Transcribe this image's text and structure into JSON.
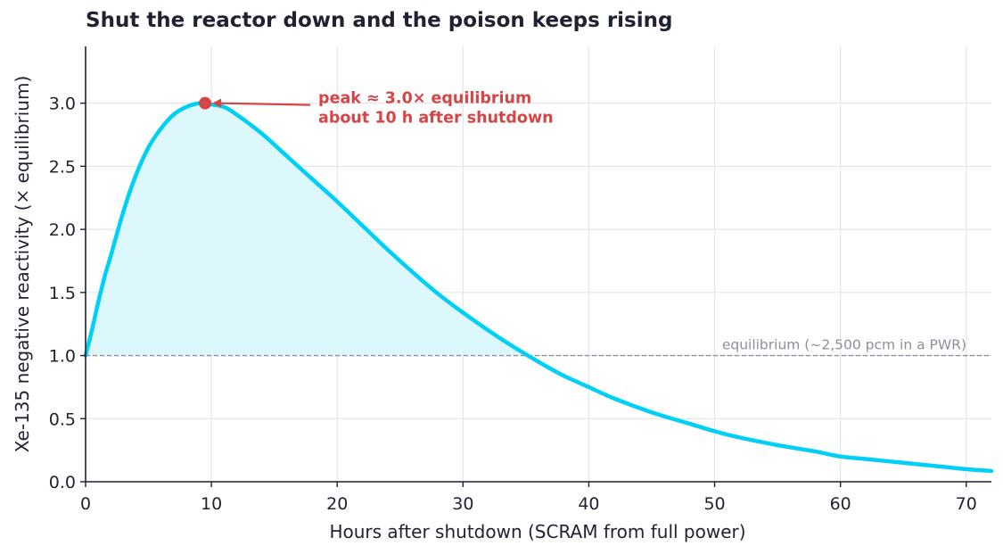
{
  "chart_data": {
    "type": "area",
    "title": "Shut the reactor down and the poison keeps rising",
    "xlabel": "Hours after shutdown (SCRAM from full power)",
    "ylabel": "Xe-135 negative reactivity (× equilibrium)",
    "xlim": [
      0,
      72
    ],
    "ylim": [
      0,
      3.45
    ],
    "xticks": [
      0,
      10,
      20,
      30,
      40,
      50,
      60,
      70
    ],
    "yticks": [
      0.0,
      0.5,
      1.0,
      1.5,
      2.0,
      2.5,
      3.0
    ],
    "ytick_labels": [
      "0.0",
      "0.5",
      "1.0",
      "1.5",
      "2.0",
      "2.5",
      "3.0"
    ],
    "grid": true,
    "series": [
      {
        "color": "#00d0f5",
        "fill_color": "#dcf8fd",
        "x": [
          0,
          0.5,
          1,
          1.5,
          2,
          3,
          4,
          5,
          6,
          7,
          8,
          9,
          9.5,
          10,
          11,
          12,
          14,
          16,
          18,
          20,
          22,
          24,
          26,
          28,
          30,
          32,
          34,
          36,
          38,
          40,
          42,
          45,
          48,
          50,
          52,
          55,
          58,
          60,
          62,
          65,
          68,
          70,
          72
        ],
        "y": [
          1.0,
          1.2,
          1.42,
          1.62,
          1.79,
          2.14,
          2.43,
          2.65,
          2.8,
          2.91,
          2.97,
          3.0,
          3.0,
          2.99,
          2.97,
          2.91,
          2.76,
          2.58,
          2.4,
          2.22,
          2.03,
          1.84,
          1.66,
          1.49,
          1.34,
          1.2,
          1.07,
          0.95,
          0.84,
          0.75,
          0.66,
          0.55,
          0.46,
          0.4,
          0.35,
          0.29,
          0.24,
          0.2,
          0.18,
          0.15,
          0.12,
          0.1,
          0.085
        ]
      }
    ],
    "fill_region": {
      "x_from": 0,
      "x_to": 35.5,
      "between": "curve and equilibrium line"
    },
    "reference_line": {
      "y": 1.0,
      "label": "equilibrium (~2,500 pcm in a PWR)",
      "color": "#8a919d"
    },
    "peak_marker": {
      "x": 9.5,
      "y": 3.0,
      "color": "#d64545"
    },
    "annotation": {
      "lines": [
        "peak ≈ 3.0× equilibrium",
        "about 10 h after shutdown"
      ],
      "text_at": {
        "x": 18.5,
        "y": 3.0
      },
      "color": "#d64545"
    }
  }
}
